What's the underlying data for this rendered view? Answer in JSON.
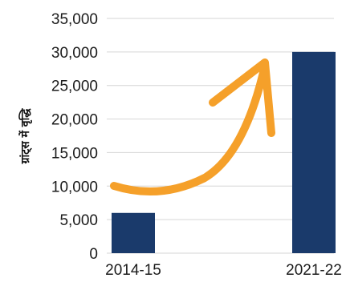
{
  "chart_data": {
    "type": "bar",
    "categories": [
      "2014-15",
      "2021-22"
    ],
    "values": [
      6000,
      30000
    ],
    "ylabel": "ग्रांट्स में वृद्धि",
    "ylim": [
      0,
      35000
    ],
    "yticks": [
      0,
      5000,
      10000,
      15000,
      20000,
      25000,
      30000,
      35000
    ],
    "ytick_labels": [
      "0",
      "5,000",
      "10,000",
      "15,000",
      "20,000",
      "25,000",
      "30,000",
      "35,000"
    ],
    "grid": true,
    "bar_color": "#1a3a6b",
    "grid_color": "#d6d6d6",
    "annotation": {
      "type": "growth-arrow",
      "color": "#f5a02a"
    }
  }
}
